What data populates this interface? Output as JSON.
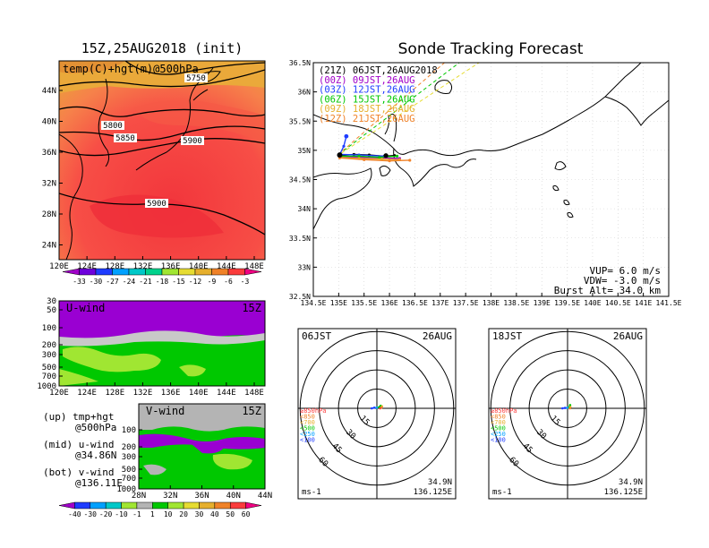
{
  "chart_data": [
    {
      "type": "heatmap",
      "id": "temp500",
      "title": "15Z,25AUG2018 (init)",
      "inner_label": "temp(C)+hgt(m)@500hPa",
      "x_ticks": [
        "120E",
        "124E",
        "128E",
        "132E",
        "136E",
        "140E",
        "144E",
        "148E"
      ],
      "y_ticks": [
        "44N",
        "40N",
        "36N",
        "32N",
        "28N",
        "24N"
      ],
      "contour_labels": [
        "5750",
        "5800",
        "5850",
        "5900",
        "5900"
      ],
      "colorbar": {
        "labels": [
          "-33",
          "-30",
          "-27",
          "-24",
          "-21",
          "-18",
          "-15",
          "-12",
          "-9",
          "-6",
          "-3"
        ],
        "colors": [
          "#a000c8",
          "#6e00dc",
          "#1e3cff",
          "#00a0ff",
          "#00c8c8",
          "#00d28c",
          "#a0e632",
          "#e6dc32",
          "#e6af2d",
          "#f08228",
          "#fa3c3c",
          "#f00082"
        ]
      }
    },
    {
      "type": "heatmap",
      "id": "uwind",
      "title": "U-wind",
      "time_label": "15Z",
      "x_ticks": [
        "120E",
        "124E",
        "128E",
        "132E",
        "136E",
        "140E",
        "144E",
        "148E"
      ],
      "y_ticks": [
        "30",
        "50",
        "100",
        "200",
        "300",
        "500",
        "700",
        "1000"
      ]
    },
    {
      "type": "heatmap",
      "id": "vwind",
      "title": "V-wind",
      "time_label": "15Z",
      "x_ticks": [
        "28N",
        "32N",
        "36N",
        "40N",
        "44N"
      ],
      "y_ticks": [
        "100",
        "200",
        "300",
        "500",
        "700",
        "1000"
      ],
      "colorbar": {
        "labels": [
          "-40",
          "-30",
          "-20",
          "-10",
          "-1",
          "1",
          "10",
          "20",
          "30",
          "40",
          "50",
          "60"
        ],
        "colors": [
          "#a000c8",
          "#1e3cff",
          "#00a0ff",
          "#00c8c8",
          "#a0e632",
          "#b4b4b4",
          "#00c800",
          "#a0e632",
          "#e6dc32",
          "#e6af2d",
          "#f08228",
          "#fa3c3c",
          "#f00082"
        ]
      }
    },
    {
      "type": "scatter",
      "id": "track",
      "title": "Sonde Tracking Forecast",
      "x_ticks": [
        "134.5E",
        "135E",
        "135.5E",
        "136E",
        "136.5E",
        "137E",
        "137.5E",
        "138E",
        "138.5E",
        "139E",
        "139.5E",
        "140E",
        "140.5E",
        "141E",
        "141.5E"
      ],
      "y_ticks": [
        "36.5N",
        "36N",
        "35.5N",
        "35N",
        "34.5N",
        "34N",
        "33.5N",
        "33N",
        "32.5N"
      ],
      "xlim": [
        134.5,
        141.5
      ],
      "ylim": [
        32.5,
        36.5
      ],
      "legend": [
        {
          "text": "(21Z) 06JST,26AUG2018",
          "color": "#000000"
        },
        {
          "text": "(00Z) 09JST,26AUG",
          "color": "#a000c8"
        },
        {
          "text": "(03Z) 12JST,26AUG",
          "color": "#1e3cff"
        },
        {
          "text": "(06Z) 15JST,26AUG",
          "color": "#00c800"
        },
        {
          "text": "(09Z) 18JST,26AUG",
          "color": "#e6af2d"
        },
        {
          "text": "(12Z) 21JST,26AUG",
          "color": "#f08228"
        }
      ],
      "series": [
        {
          "name": "(21Z) 06JST,26AUG2018",
          "x": [
            135.02,
            135.3,
            135.6,
            135.9,
            136.1
          ],
          "y": [
            34.91,
            34.93,
            34.92,
            34.9,
            34.91
          ],
          "color": "#000000"
        },
        {
          "name": "(00Z) 09JST,26AUG",
          "x": [
            135.02,
            135.4,
            135.8,
            136.2
          ],
          "y": [
            34.89,
            34.88,
            34.87,
            34.86
          ],
          "color": "#a000c8"
        },
        {
          "name": "(03Z) 12JST,26AUG",
          "x": [
            135.15,
            135.1,
            135.02,
            135.4,
            135.9
          ],
          "y": [
            35.24,
            35.07,
            34.93,
            34.92,
            34.9
          ],
          "color": "#1e3cff"
        },
        {
          "name": "(06Z) 15JST,26AUG",
          "x": [
            135.05,
            135.4,
            135.8,
            136.15
          ],
          "y": [
            34.9,
            34.9,
            34.88,
            34.9
          ],
          "color": "#00c800"
        },
        {
          "name": "(09Z) 18JST,26AUG",
          "x": [
            135.02,
            135.4,
            135.85,
            136.2
          ],
          "y": [
            34.88,
            34.86,
            34.85,
            34.84
          ],
          "color": "#e6af2d"
        },
        {
          "name": "(12Z) 21JST,26AUG",
          "x": [
            135.02,
            135.5,
            136.0,
            136.4
          ],
          "y": [
            34.87,
            34.84,
            34.82,
            34.83
          ],
          "color": "#f08228"
        }
      ],
      "launch_marker": [
        135.02,
        34.92
      ],
      "burst_marker": [
        135.93,
        34.91
      ],
      "guide_lines": [
        {
          "x": [
            135.05,
            137.85
          ],
          "y": [
            34.95,
            36.55
          ],
          "color": "#e6dc32"
        },
        {
          "x": [
            135.0,
            137.45
          ],
          "y": [
            34.93,
            36.55
          ],
          "color": "#00c800"
        },
        {
          "x": [
            134.98,
            137.15
          ],
          "y": [
            34.92,
            36.55
          ],
          "color": "#f08228"
        }
      ],
      "params": [
        "VUP= 6.0 m/s",
        "VDW= -3.0 m/s",
        "Burst Alt= 34.0 km"
      ]
    },
    {
      "type": "scatter",
      "id": "polar06",
      "time_label": "06JST",
      "date_label": "26AUG",
      "ring_labels": [
        "15",
        "30",
        "45",
        "60"
      ],
      "pressure_legend": [
        {
          "text": "≥850hPa",
          "color": "#fa3c3c"
        },
        {
          "text": "<850",
          "color": "#f08228"
        },
        {
          "text": "<700",
          "color": "#e6af2d"
        },
        {
          "text": "<500",
          "color": "#00c800"
        },
        {
          "text": "<250",
          "color": "#00a0ff"
        },
        {
          "text": "<100",
          "color": "#1e3cff"
        }
      ],
      "unit_label": "ms-1",
      "location": [
        "34.9N",
        "136.125E"
      ],
      "hodograph": [
        {
          "u": -4,
          "v": 0,
          "color": "#1e3cff"
        },
        {
          "u": -2,
          "v": 0.5,
          "color": "#1e3cff"
        },
        {
          "u": 0,
          "v": 0.5,
          "color": "#00a0ff"
        },
        {
          "u": 2,
          "v": 1,
          "color": "#00c800"
        },
        {
          "u": 3,
          "v": 2,
          "color": "#00c800"
        },
        {
          "u": 4,
          "v": 1.5,
          "color": "#e6af2d"
        },
        {
          "u": 3.5,
          "v": 0.5,
          "color": "#f08228"
        },
        {
          "u": 2.5,
          "v": 0,
          "color": "#fa3c3c"
        }
      ]
    },
    {
      "type": "scatter",
      "id": "polar18",
      "time_label": "18JST",
      "date_label": "26AUG",
      "ring_labels": [
        "15",
        "30",
        "45",
        "60"
      ],
      "pressure_legend": [
        {
          "text": "≥850hPa",
          "color": "#fa3c3c"
        },
        {
          "text": "<850",
          "color": "#f08228"
        },
        {
          "text": "<700",
          "color": "#e6af2d"
        },
        {
          "text": "<500",
          "color": "#00c800"
        },
        {
          "text": "<250",
          "color": "#00a0ff"
        },
        {
          "text": "<100",
          "color": "#1e3cff"
        }
      ],
      "unit_label": "ms-1",
      "location": [
        "34.9N",
        "136.125E"
      ],
      "hodograph": [
        {
          "u": -4,
          "v": 0,
          "color": "#1e3cff"
        },
        {
          "u": -2,
          "v": 0.3,
          "color": "#1e3cff"
        },
        {
          "u": 0,
          "v": 0.5,
          "color": "#00a0ff"
        },
        {
          "u": 1.5,
          "v": 1,
          "color": "#00c800"
        },
        {
          "u": 2,
          "v": 2.5,
          "color": "#00c800"
        },
        {
          "u": 2.2,
          "v": 1,
          "color": "#e6af2d"
        },
        {
          "u": 1.8,
          "v": 0,
          "color": "#f08228"
        }
      ]
    }
  ],
  "notes": {
    "up": [
      "(up) tmp+hgt",
      "@500hPa"
    ],
    "mid": [
      "(mid) u-wind",
      "@34.86N"
    ],
    "bot": [
      "(bot) v-wind",
      "@136.11E"
    ]
  }
}
